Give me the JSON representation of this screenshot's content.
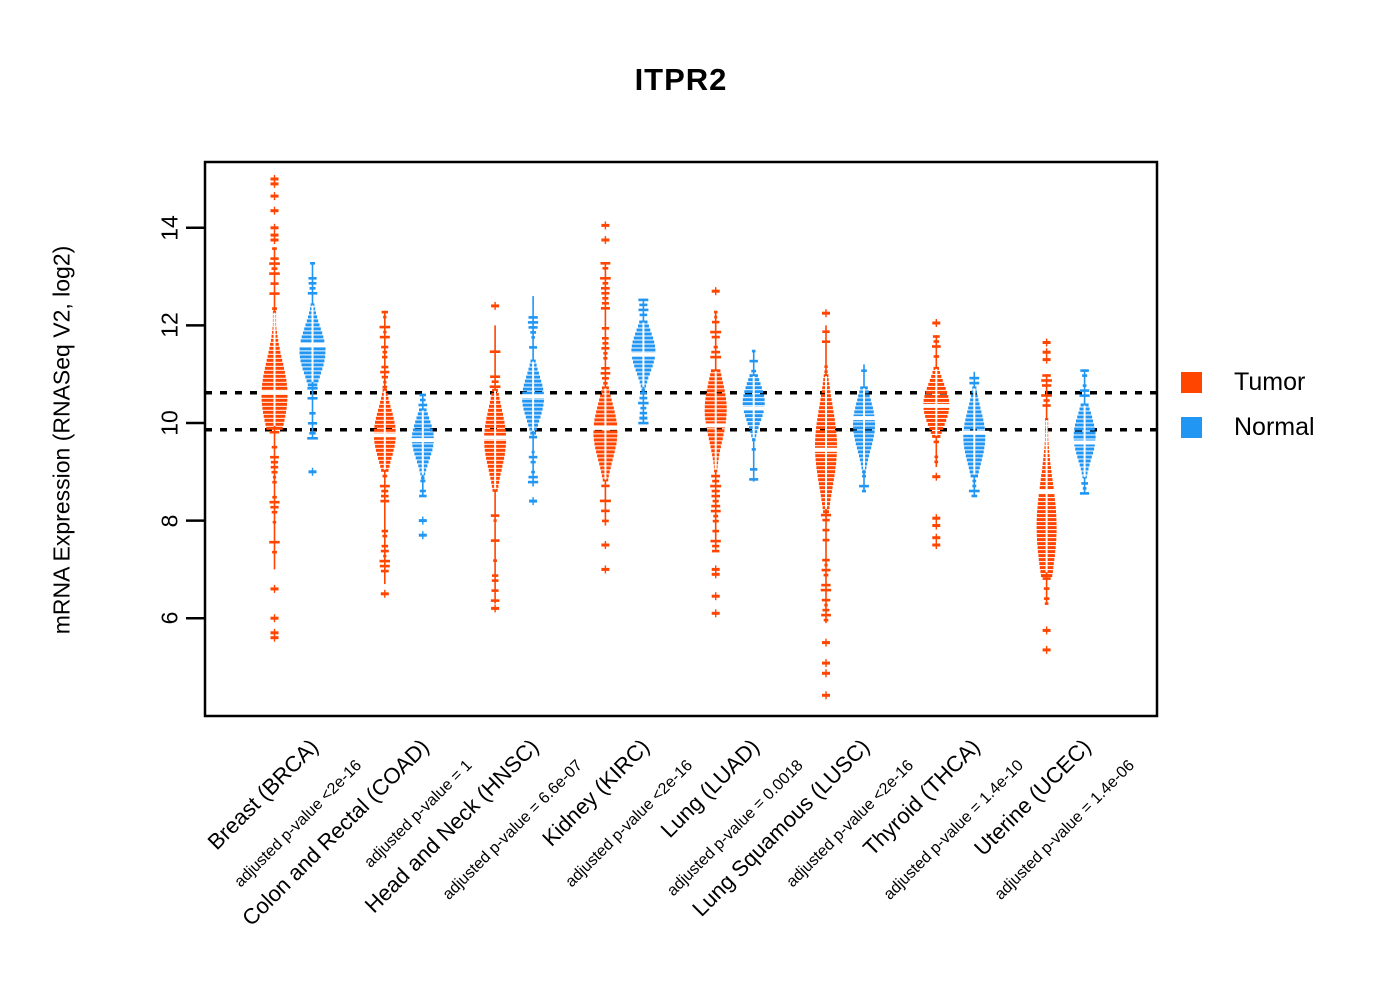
{
  "chart_data": {
    "type": "violin",
    "title": "ITPR2",
    "ylabel": "mRNA Expression (RNASeq V2, log2)",
    "ylim": [
      4.2,
      15.3
    ],
    "yticks": [
      14,
      12,
      10,
      8,
      6
    ],
    "grid": false,
    "legend_position": "right",
    "legend_labels": [
      "Tumor",
      "Normal"
    ],
    "colors": {
      "tumor": "#FF4500",
      "normal": "#2196F3",
      "axis": "#000000",
      "reference": "#000000"
    },
    "reference_lines": {
      "values": [
        10.62,
        9.86
      ],
      "style": "dotted"
    },
    "groups": [
      {
        "label": "Breast (BRCA)",
        "pvalue_label": "adjusted p-value <2e-16",
        "series": {
          "tumor": {
            "median": 10.62,
            "body": [
              9.9,
              12.3
            ],
            "peak": 10.6,
            "width": 13,
            "whiskers": [
              7.0,
              13.6
            ],
            "outliers": [
              15.0,
              14.9,
              14.65,
              14.35,
              14.0,
              13.85,
              13.75,
              6.6,
              6.0,
              5.7,
              5.6
            ]
          },
          "normal": {
            "median": 11.6,
            "body": [
              10.8,
              12.45
            ],
            "peak": 11.5,
            "width": 13,
            "whiskers": [
              9.7,
              13.3
            ],
            "outliers": [
              9.0
            ]
          }
        }
      },
      {
        "label": "Colon and Rectal (COAD)",
        "pvalue_label": "adjusted p-value = 1",
        "series": {
          "tumor": {
            "median": 9.75,
            "body": [
              9.0,
              10.7
            ],
            "peak": 9.8,
            "width": 11,
            "whiskers": [
              6.7,
              12.3
            ],
            "outliers": [
              6.5
            ]
          },
          "normal": {
            "median": 9.65,
            "body": [
              8.9,
              10.3
            ],
            "peak": 9.7,
            "width": 11,
            "whiskers": [
              8.5,
              10.6
            ],
            "outliers": [
              8.0,
              7.7
            ]
          }
        }
      },
      {
        "label": "Head and Neck (HNSC)",
        "pvalue_label": "adjusted p-value = 6.6e-07",
        "series": {
          "tumor": {
            "median": 9.7,
            "body": [
              8.6,
              10.7
            ],
            "peak": 9.7,
            "width": 11,
            "whiskers": [
              6.3,
              12.0
            ],
            "outliers": [
              12.4,
              6.2
            ]
          },
          "normal": {
            "median": 10.55,
            "body": [
              9.8,
              11.3
            ],
            "peak": 10.55,
            "width": 11,
            "whiskers": [
              8.7,
              12.6
            ],
            "outliers": [
              8.4
            ]
          }
        }
      },
      {
        "label": "Kidney (KIRC)",
        "pvalue_label": "adjusted p-value <2e-16",
        "series": {
          "tumor": {
            "median": 9.9,
            "body": [
              8.8,
              10.75
            ],
            "peak": 9.85,
            "width": 12,
            "whiskers": [
              7.9,
              13.3
            ],
            "outliers": [
              14.05,
              13.75,
              7.5,
              7.0
            ]
          },
          "normal": {
            "median": 11.4,
            "body": [
              10.7,
              12.1
            ],
            "peak": 11.5,
            "width": 12,
            "whiskers": [
              10.0,
              12.55
            ],
            "outliers": [
              10.1
            ]
          }
        }
      },
      {
        "label": "Lung (LUAD)",
        "pvalue_label": "adjusted p-value = 0.0018",
        "series": {
          "tumor": {
            "median": 9.95,
            "body": [
              9.0,
              11.1
            ],
            "peak": 10.3,
            "width": 11,
            "whiskers": [
              7.4,
              12.3
            ],
            "outliers": [
              12.7,
              7.0,
              6.9,
              6.45,
              6.1
            ]
          },
          "normal": {
            "median": 10.3,
            "body": [
              9.65,
              11.0
            ],
            "peak": 10.45,
            "width": 11,
            "whiskers": [
              8.8,
              11.5
            ],
            "outliers": []
          }
        }
      },
      {
        "label": "Lung Squamous (LUSC)",
        "pvalue_label": "adjusted p-value <2e-16",
        "series": {
          "tumor": {
            "median": 9.45,
            "body": [
              8.2,
              11.0
            ],
            "peak": 9.55,
            "width": 11,
            "whiskers": [
              5.9,
              12.0
            ],
            "outliers": [
              12.25,
              5.5,
              5.08,
              4.87,
              4.42
            ]
          },
          "normal": {
            "median": 10.1,
            "body": [
              9.0,
              10.75
            ],
            "peak": 10.0,
            "width": 11,
            "whiskers": [
              8.6,
              11.2
            ],
            "outliers": []
          }
        }
      },
      {
        "label": "Thyroid (THCA)",
        "pvalue_label": "adjusted p-value = 1.4e-10",
        "series": {
          "tumor": {
            "median": 10.35,
            "body": [
              9.7,
              11.15
            ],
            "peak": 10.4,
            "width": 13,
            "whiskers": [
              9.1,
              11.8
            ],
            "outliers": [
              12.05,
              8.9,
              8.05,
              7.9,
              7.65,
              7.5
            ]
          },
          "normal": {
            "median": 9.8,
            "body": [
              8.9,
              10.75
            ],
            "peak": 9.75,
            "width": 11,
            "whiskers": [
              8.5,
              11.05
            ],
            "outliers": []
          }
        }
      },
      {
        "label": "Uterine (UCEC)",
        "pvalue_label": "adjusted p-value = 1.4e-06",
        "series": {
          "tumor": {
            "median": 8.6,
            "body": [
              6.9,
              10.1
            ],
            "peak": 7.9,
            "width": 10,
            "whiskers": [
              6.3,
              11.0
            ],
            "outliers": [
              11.65,
              11.45,
              11.3,
              5.75,
              5.35
            ]
          },
          "normal": {
            "median": 9.6,
            "body": [
              8.85,
              10.4
            ],
            "peak": 9.75,
            "width": 11,
            "whiskers": [
              8.55,
              11.1
            ],
            "outliers": []
          }
        }
      }
    ]
  }
}
